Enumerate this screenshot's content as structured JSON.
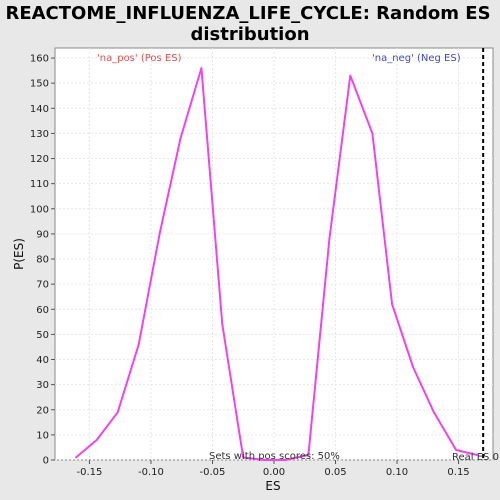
{
  "chart_data": {
    "type": "line",
    "title_line1": "REACTOME_INFLUENZA_LIFE_CYCLE: Random ES",
    "title_line2": "distribution",
    "xlabel": "ES",
    "ylabel": "P(ES)",
    "xlim": [
      -0.178,
      0.178
    ],
    "ylim": [
      0,
      164
    ],
    "x_ticks": [
      -0.15,
      -0.1,
      -0.05,
      0.0,
      0.05,
      0.1,
      0.15
    ],
    "x_tick_labels": [
      "-0.15",
      "-0.10",
      "-0.05",
      "0.00",
      "0.05",
      "0.10",
      "0.15"
    ],
    "y_ticks": [
      0,
      10,
      20,
      30,
      40,
      50,
      60,
      70,
      80,
      90,
      100,
      110,
      120,
      130,
      140,
      150,
      160
    ],
    "y_tick_labels": [
      "0",
      "10",
      "20",
      "30",
      "40",
      "50",
      "60",
      "70",
      "80",
      "90",
      "100",
      "110",
      "120",
      "130",
      "140",
      "150",
      "160"
    ],
    "grid": true,
    "series": [
      {
        "color": "#ee44ee",
        "x": [
          -0.161,
          -0.144,
          -0.127,
          -0.11,
          -0.093,
          -0.076,
          -0.059,
          -0.042,
          -0.025,
          -0.008,
          0.009,
          0.028,
          0.045,
          0.062,
          0.08,
          0.096,
          0.113,
          0.13,
          0.148,
          0.165
        ],
        "y": [
          1,
          8,
          19,
          46,
          90,
          128,
          156,
          54,
          1,
          0,
          0,
          2,
          88,
          153,
          130,
          62,
          37,
          19,
          4,
          2
        ]
      }
    ],
    "legend_pos": "'na_pos' (Pos ES)",
    "legend_neg": "'na_neg' (Neg ES)",
    "annotation_sets": "Sets with pos scores: 50%",
    "annotation_real": "Real ES 0",
    "real_es": 0.17,
    "real_es_color": "#000000"
  }
}
